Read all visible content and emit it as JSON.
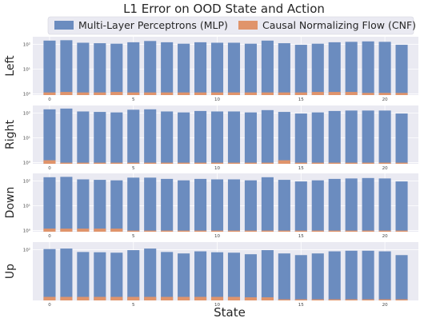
{
  "chart_data": {
    "type": "bar",
    "title": "L1 Error on OOD State and Action",
    "xlabel": "State",
    "legend": {
      "placement": "top-center",
      "entries": [
        {
          "name": "Multi-Layer Perceptrons (MLP)",
          "color": "#6b8cbf"
        },
        {
          "name": "Causal Normalizing Flow (CNF)",
          "color": "#e0946b"
        }
      ]
    },
    "x": [
      0,
      1,
      2,
      3,
      4,
      5,
      6,
      7,
      8,
      9,
      10,
      11,
      12,
      13,
      14,
      15,
      16,
      17,
      18,
      19,
      20,
      21
    ],
    "x_ticks": [
      0,
      5,
      10,
      15,
      20
    ],
    "grid": true,
    "yscale": "log",
    "panels": [
      {
        "ylabel": "Left",
        "ylim": [
          0.9,
          200
        ],
        "y_ticks": [
          {
            "value": 1,
            "label": "10⁰"
          },
          {
            "value": 10,
            "label": "10¹"
          },
          {
            "value": 100,
            "label": "10²"
          }
        ],
        "series": [
          {
            "name": "Multi-Layer Perceptrons (MLP)",
            "values": [
              140,
              145,
              115,
              110,
              105,
              120,
              135,
              120,
              105,
              120,
              115,
              115,
              105,
              140,
              110,
              95,
              105,
              120,
              125,
              130,
              125,
              95
            ]
          },
          {
            "name": "Causal Normalizing Flow (CNF)",
            "values": [
              1.15,
              1.2,
              1.15,
              1.15,
              1.2,
              1.15,
              1.15,
              1.15,
              1.15,
              1.15,
              1.15,
              1.15,
              1.15,
              1.15,
              1.15,
              1.15,
              1.2,
              1.2,
              1.2,
              1.1,
              1.1,
              1.1
            ]
          }
        ]
      },
      {
        "ylabel": "Right",
        "ylim": [
          0.9,
          200
        ],
        "y_ticks": [
          {
            "value": 1,
            "label": "10⁰"
          },
          {
            "value": 10,
            "label": "10¹"
          },
          {
            "value": 100,
            "label": "10²"
          }
        ],
        "series": [
          {
            "name": "Multi-Layer Perceptrons (MLP)",
            "values": [
              140,
              150,
              115,
              110,
              105,
              135,
              140,
              115,
              105,
              120,
              115,
              115,
              105,
              130,
              110,
              95,
              105,
              120,
              125,
              125,
              125,
              95
            ]
          },
          {
            "name": "Causal Normalizing Flow (CNF)",
            "values": [
              1.25,
              1.0,
              1.0,
              1.0,
              1.0,
              1.0,
              1.0,
              1.0,
              1.0,
              1.0,
              1.0,
              1.0,
              1.0,
              1.0,
              1.25,
              1.0,
              1.0,
              1.0,
              1.0,
              1.0,
              1.0,
              1.0
            ]
          }
        ]
      },
      {
        "ylabel": "Down",
        "ylim": [
          0.9,
          200
        ],
        "y_ticks": [
          {
            "value": 1,
            "label": "10⁰"
          },
          {
            "value": 10,
            "label": "10¹"
          },
          {
            "value": 100,
            "label": "10²"
          }
        ],
        "series": [
          {
            "name": "Multi-Layer Perceptrons (MLP)",
            "values": [
              140,
              145,
              115,
              110,
              105,
              135,
              135,
              120,
              105,
              120,
              115,
              115,
              105,
              140,
              110,
              95,
              105,
              120,
              125,
              130,
              125,
              95
            ]
          },
          {
            "name": "Causal Normalizing Flow (CNF)",
            "values": [
              1.2,
              1.2,
              1.2,
              1.2,
              1.2,
              1.0,
              1.0,
              1.0,
              1.0,
              1.0,
              1.0,
              1.0,
              1.0,
              1.0,
              1.0,
              1.0,
              1.0,
              1.0,
              1.0,
              1.0,
              1.0,
              1.0
            ]
          }
        ]
      },
      {
        "ylabel": "Up",
        "ylim": [
          0.9,
          200
        ],
        "y_ticks": [
          {
            "value": 100,
            "label": "10²"
          }
        ],
        "series": [
          {
            "name": "Multi-Layer Perceptrons (MLP)",
            "values": [
              105,
              110,
              80,
              78,
              75,
              95,
              110,
              80,
              70,
              85,
              78,
              75,
              65,
              95,
              70,
              60,
              70,
              85,
              90,
              90,
              85,
              60
            ]
          },
          {
            "name": "Causal Normalizing Flow (CNF)",
            "values": [
              1.25,
              1.25,
              1.25,
              1.25,
              1.25,
              1.25,
              1.25,
              1.25,
              1.25,
              1.25,
              1.25,
              1.25,
              1.2,
              1.2,
              1.0,
              1.0,
              1.0,
              1.0,
              1.0,
              1.0,
              1.0,
              1.0
            ]
          }
        ]
      }
    ]
  }
}
